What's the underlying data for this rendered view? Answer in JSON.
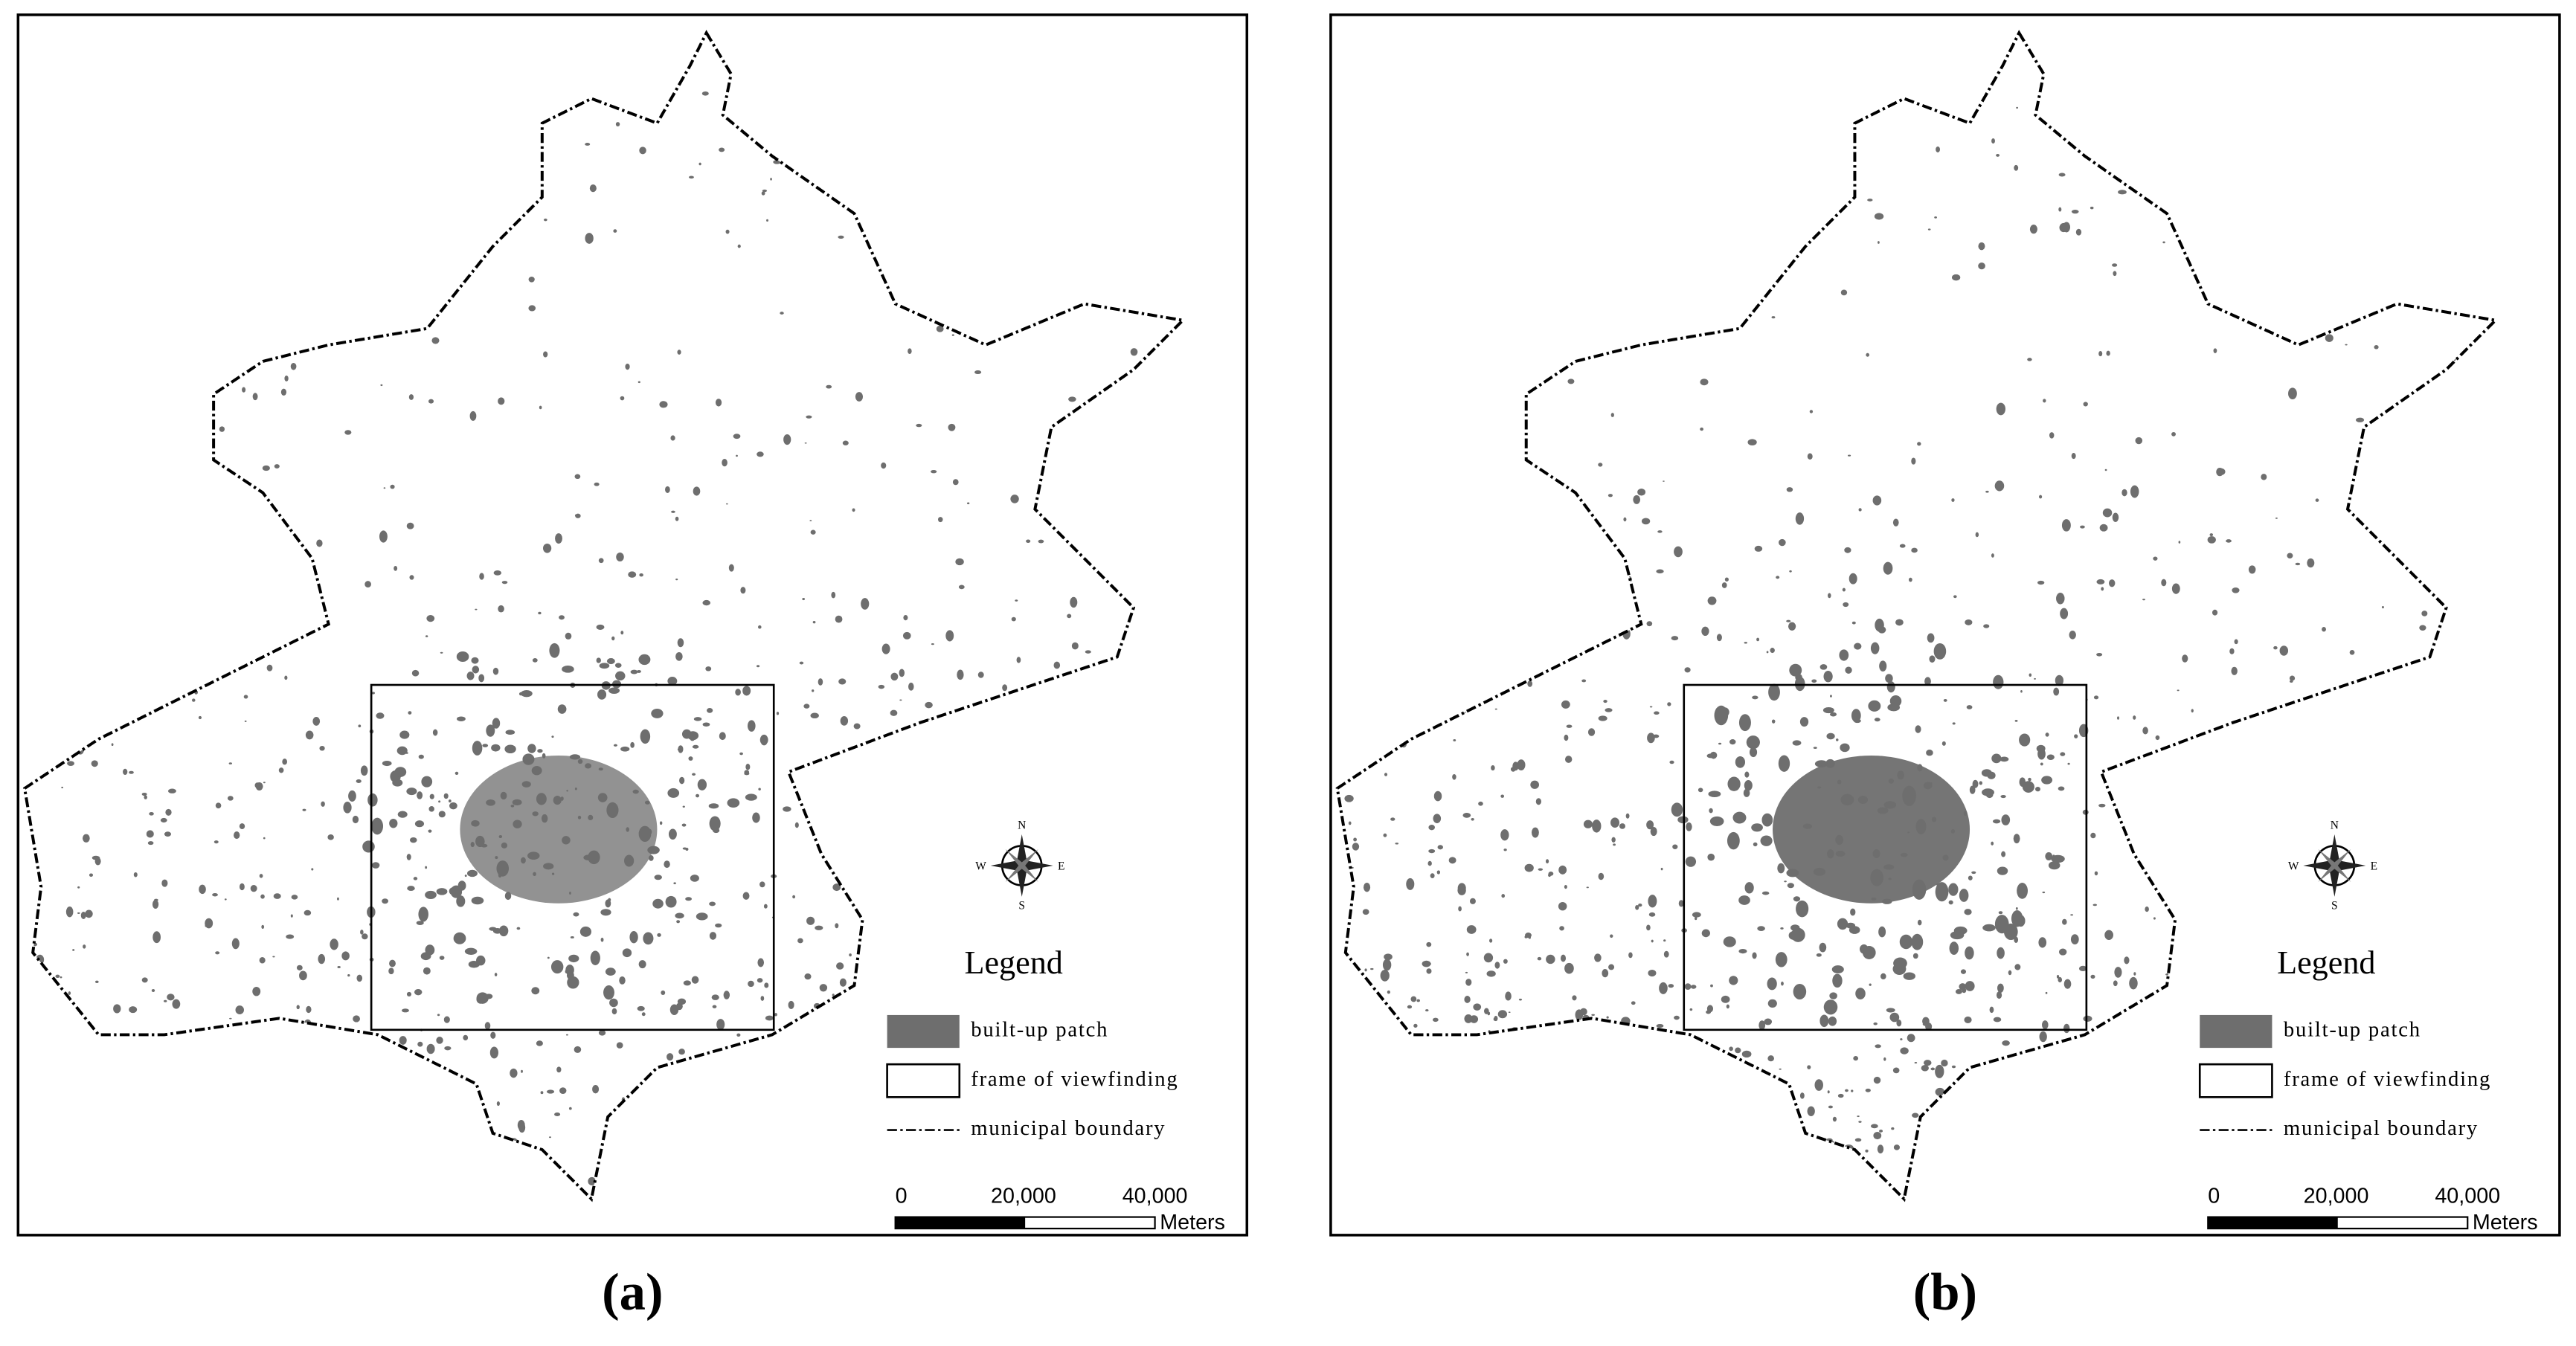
{
  "panels": [
    {
      "caption": "(a)",
      "compass": {
        "north": "N",
        "south": "S",
        "east": "E",
        "west": "W"
      },
      "legend": {
        "title": "Legend",
        "items": [
          "built-up patch",
          "frame of viewfinding",
          "municipal boundary"
        ]
      },
      "scale_bar": {
        "ticks": [
          "0",
          "20,000",
          "40,000"
        ],
        "unit": "Meters"
      }
    },
    {
      "caption": "(b)",
      "compass": {
        "north": "N",
        "south": "S",
        "east": "E",
        "west": "W"
      },
      "legend": {
        "title": "Legend",
        "items": [
          "built-up patch",
          "frame of viewfinding",
          "municipal boundary"
        ]
      },
      "scale_bar": {
        "ticks": [
          "0",
          "20,000",
          "40,000"
        ],
        "unit": "Meters"
      }
    }
  ]
}
